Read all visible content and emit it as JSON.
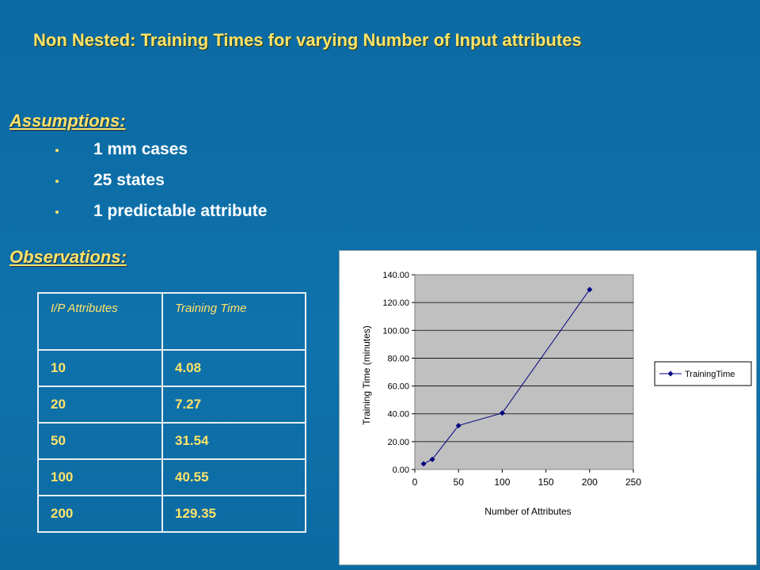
{
  "slide": {
    "title": "Non Nested: Training Times for varying Number of Input attributes",
    "assumptions_heading": "Assumptions:",
    "assumptions": [
      "1 mm cases",
      "25 states",
      "1 predictable attribute"
    ],
    "observations_heading": "Observations:"
  },
  "table": {
    "headers": [
      "I/P Attributes",
      "Training Time"
    ],
    "rows": [
      [
        "10",
        "4.08"
      ],
      [
        "20",
        "7.27"
      ],
      [
        "50",
        "31.54"
      ],
      [
        "100",
        "40.55"
      ],
      [
        "200",
        "129.35"
      ]
    ]
  },
  "chart_data": {
    "type": "line",
    "xlabel": "Number of Attributes",
    "ylabel": "Training Time (minutes)",
    "xlim": [
      0,
      250
    ],
    "ylim": [
      0,
      140
    ],
    "x_ticks": [
      "0",
      "50",
      "100",
      "150",
      "200",
      "250"
    ],
    "y_ticks": [
      "0.00",
      "20.00",
      "40.00",
      "60.00",
      "80.00",
      "100.00",
      "120.00",
      "140.00"
    ],
    "grid": true,
    "legend_position": "right",
    "series": [
      {
        "name": "TrainingTime",
        "x": [
          10,
          20,
          50,
          100,
          200
        ],
        "y": [
          4.08,
          7.27,
          31.54,
          40.55,
          129.35
        ],
        "color": "#000080"
      }
    ]
  }
}
